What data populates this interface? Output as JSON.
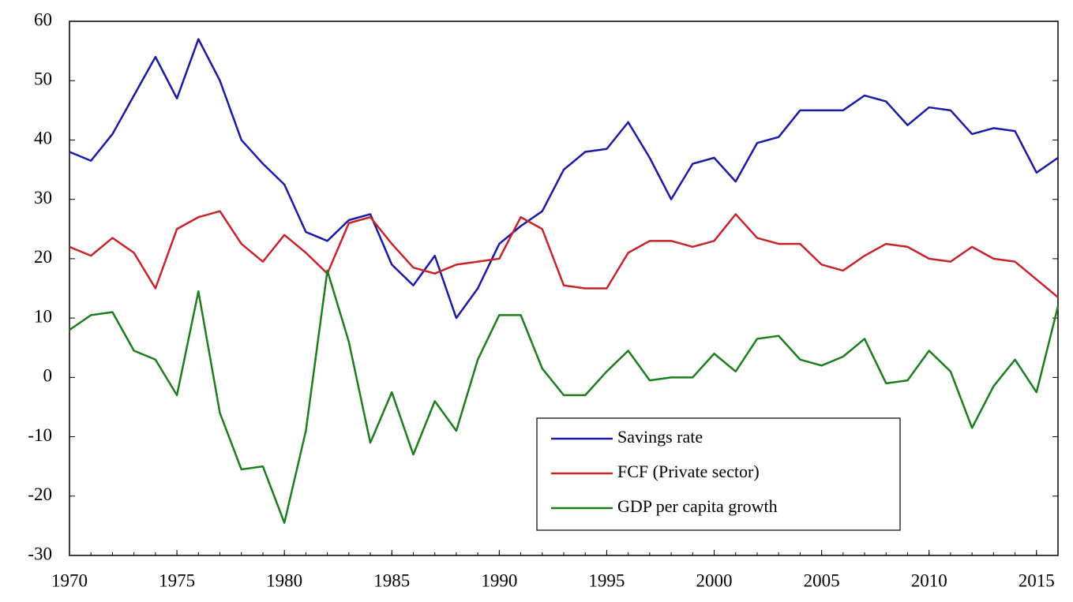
{
  "chart_data": {
    "type": "line",
    "x": [
      1970,
      1971,
      1972,
      1973,
      1974,
      1975,
      1976,
      1977,
      1978,
      1979,
      1980,
      1981,
      1982,
      1983,
      1984,
      1985,
      1986,
      1987,
      1988,
      1989,
      1990,
      1991,
      1992,
      1993,
      1994,
      1995,
      1996,
      1997,
      1998,
      1999,
      2000,
      2001,
      2002,
      2003,
      2004,
      2005,
      2006,
      2007,
      2008,
      2009,
      2010,
      2011,
      2012,
      2013,
      2014,
      2015,
      2016
    ],
    "series": [
      {
        "name": "Savings rate",
        "color": "#1a1aa6",
        "values": [
          38,
          36.5,
          41,
          47.5,
          54,
          47,
          57,
          50,
          40,
          36,
          32.5,
          24.5,
          23,
          26.5,
          27.5,
          19,
          15.5,
          20.5,
          10,
          15,
          22.5,
          25.5,
          28,
          35,
          38,
          38.5,
          43,
          37,
          30,
          36,
          37,
          33,
          39.5,
          40.5,
          45,
          45,
          45,
          47.5,
          46.5,
          42.5,
          45.5,
          45,
          41,
          42,
          41.5,
          34.5,
          37
        ]
      },
      {
        "name": "FCF (Private sector)",
        "color": "#c8222a",
        "values": [
          22,
          20.5,
          23.5,
          21,
          15,
          25,
          27,
          28,
          22.5,
          19.5,
          24,
          21,
          17.5,
          26,
          27,
          22.5,
          18.5,
          17.5,
          19,
          19.5,
          20,
          27,
          25,
          15.5,
          15,
          15,
          21,
          23,
          23,
          22,
          23,
          27.5,
          23.5,
          22.5,
          22.5,
          19,
          18,
          20.5,
          22.5,
          22,
          20,
          19.5,
          22,
          20,
          19.5,
          16.5,
          13.5
        ]
      },
      {
        "name": "GDP per capita growth",
        "color": "#1c7d1c",
        "values": [
          8,
          10.5,
          11,
          4.5,
          3,
          -3,
          14.5,
          -6,
          -15.5,
          -15,
          -24.5,
          -9,
          18,
          6,
          -11,
          -2.5,
          -13,
          -4,
          -9,
          3,
          10.5,
          10.5,
          1.5,
          -3,
          -3,
          1,
          4.5,
          -0.5,
          0,
          0,
          4,
          1,
          6.5,
          7,
          3,
          2,
          3.5,
          6.5,
          -1,
          -0.5,
          4.5,
          1,
          -8.5,
          -1.5,
          3,
          -2.5,
          12
        ]
      }
    ],
    "xlim": [
      1970,
      2016
    ],
    "xticks": [
      1970,
      1975,
      1980,
      1985,
      1990,
      1995,
      2000,
      2005,
      2010,
      2015
    ],
    "ylim": [
      -30,
      60
    ],
    "yticks": [
      -30,
      -20,
      -10,
      0,
      10,
      20,
      30,
      40,
      50,
      60
    ],
    "grid": false,
    "legend": "lower right"
  }
}
